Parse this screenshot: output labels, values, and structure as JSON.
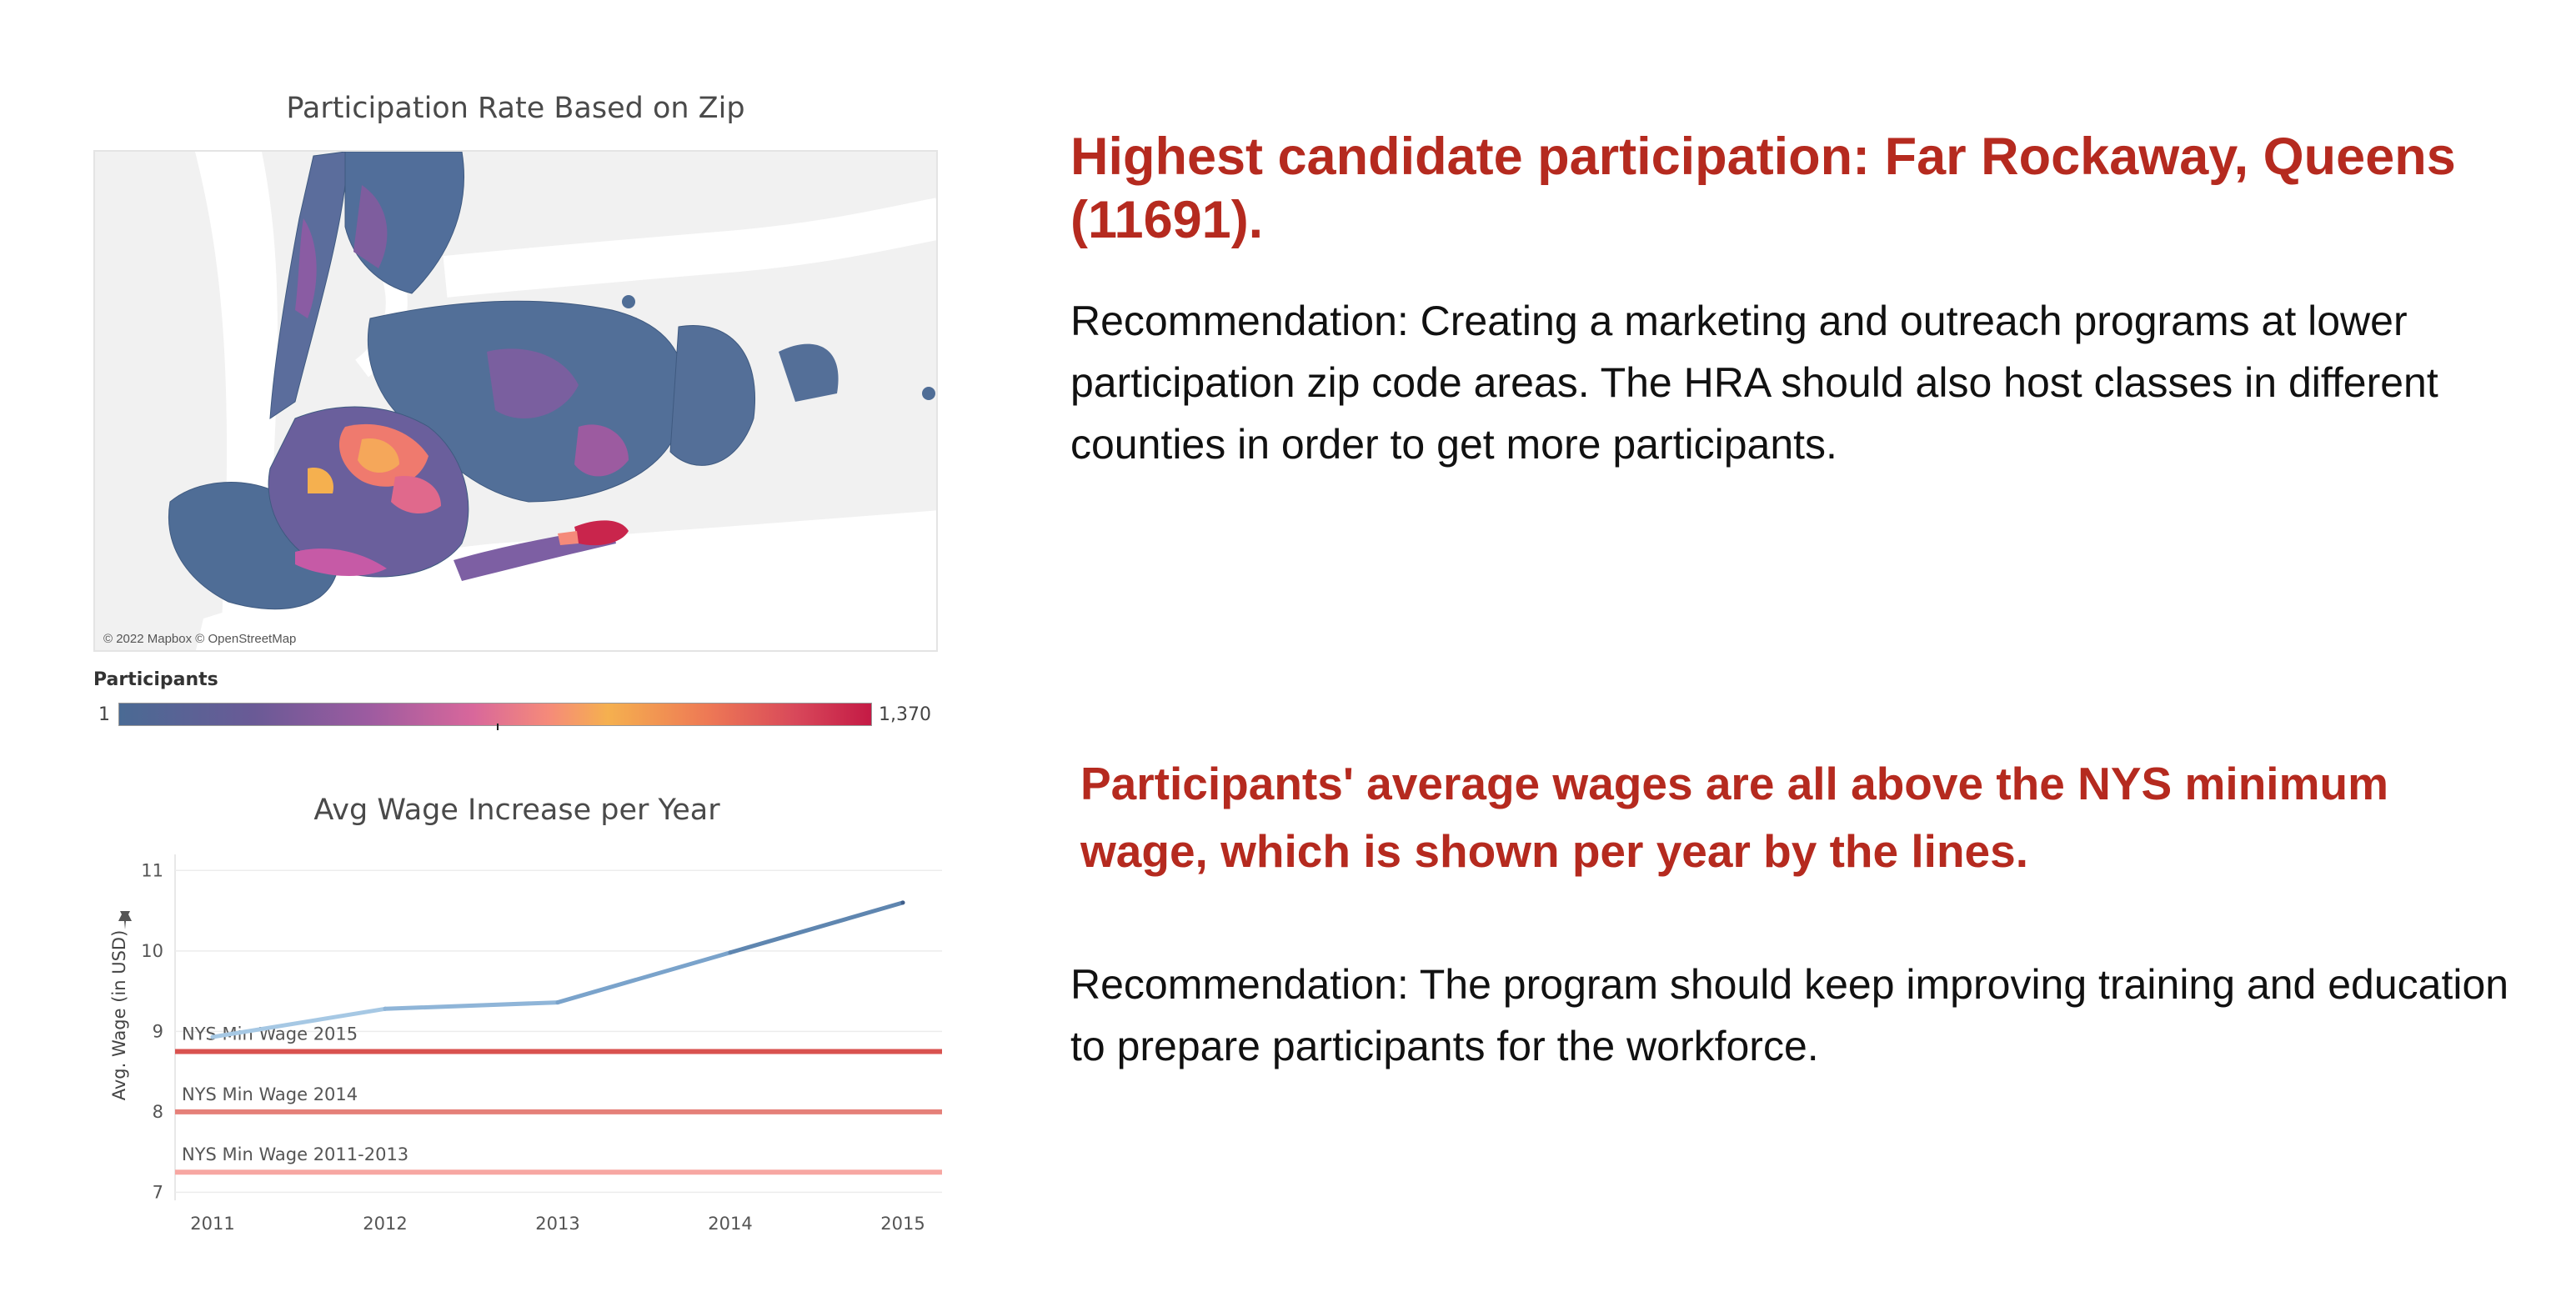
{
  "map_panel": {
    "title": "Participation Rate Based on Zip",
    "attribution": "© 2022 Mapbox © OpenStreetMap",
    "legend_title": "Participants",
    "legend_min": "1",
    "legend_max": "1,370",
    "scale_colors": [
      "#4a6a94",
      "#9c5ba0",
      "#f58a7a",
      "#f5b04f",
      "#c41a45"
    ]
  },
  "chart_data": {
    "type": "line",
    "title": "Avg Wage Increase per Year",
    "xlabel": "",
    "ylabel": "Avg. Wage (in USD)",
    "x": [
      "2011",
      "2012",
      "2013",
      "2014",
      "2015"
    ],
    "yticks": [
      "7",
      "8",
      "9",
      "10",
      "11"
    ],
    "ylim": [
      6.9,
      11.2
    ],
    "series": [
      {
        "values": [
          8.93,
          9.28,
          9.36,
          9.98,
          10.6
        ]
      }
    ],
    "reference_lines": [
      {
        "label": "NYS Min Wage 2015",
        "value": 8.75,
        "color": "#d9524f"
      },
      {
        "label": "NYS Min Wage 2014",
        "value": 8.0,
        "color": "#e58079"
      },
      {
        "label": "NYS Min Wage 2011-2013",
        "value": 7.25,
        "color": "#f7a7a2"
      }
    ],
    "grid": true
  },
  "insights": {
    "heading1": "Highest candidate participation: Far Rockaway, Queens (11691).",
    "body1": "Recommendation: Creating a marketing and outreach programs at lower participation zip code areas. The HRA should also host classes in different counties in order to get more participants.",
    "heading2": "Participants' average wages are all above the NYS minimum wage, which is shown per year by the lines.",
    "body2": "Recommendation: The program should keep improving training and education to prepare participants for the workforce."
  }
}
